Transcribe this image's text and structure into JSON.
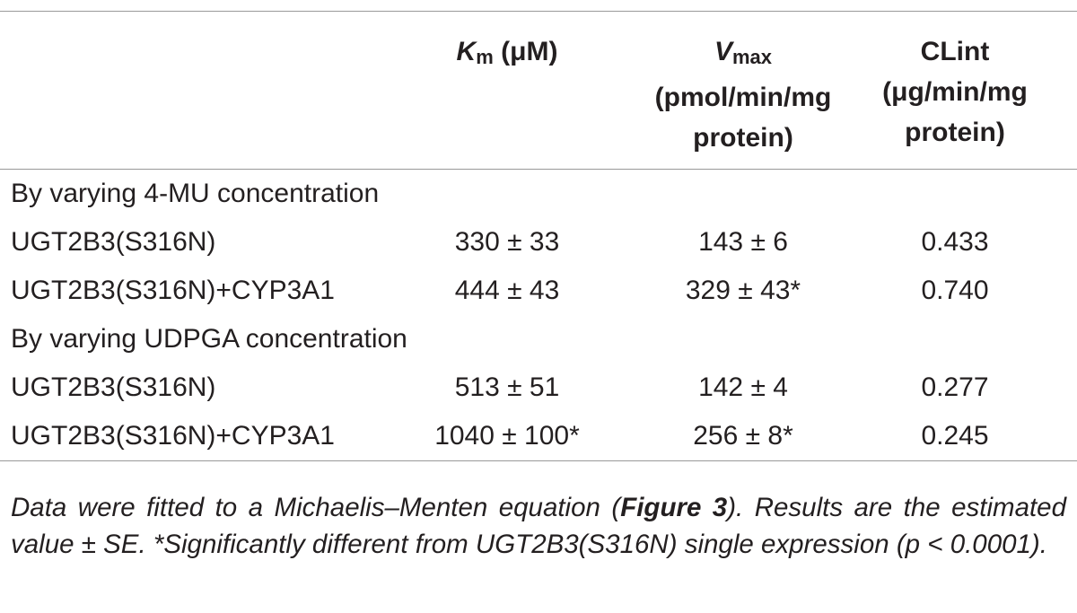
{
  "table": {
    "columns": [
      {
        "symbol": "K",
        "sub": "m",
        "unit": "(μM)"
      },
      {
        "symbol": "V",
        "sub": "max",
        "unit": "(pmol/min/mg protein)"
      },
      {
        "symbol": "CLint",
        "unit": "(μg/min/mg protein)"
      }
    ],
    "sections": [
      {
        "title": "By varying 4-MU concentration",
        "rows": [
          [
            "UGT2B3(S316N)",
            "330 ± 33",
            "143 ± 6",
            "0.433"
          ],
          [
            "UGT2B3(S316N)+CYP3A1",
            "444 ± 43",
            "329 ± 43*",
            "0.740"
          ]
        ]
      },
      {
        "title": "By varying UDPGA concentration",
        "rows": [
          [
            "UGT2B3(S316N)",
            "513 ± 51",
            "142 ± 4",
            "0.277"
          ],
          [
            "UGT2B3(S316N)+CYP3A1",
            "1040 ± 100*",
            "256 ± 8*",
            "0.245"
          ]
        ]
      }
    ]
  },
  "footnote": {
    "before": "Data were fitted to a Michaelis–Menten equation (",
    "figure_ref": "Figure 3",
    "after": "). Results are the estimated value ± SE. *Significantly different from UGT2B3(S316N) single expression (p < 0.0001)."
  }
}
